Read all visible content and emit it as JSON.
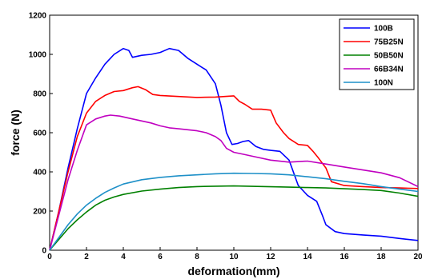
{
  "chart_data": {
    "type": "line",
    "title": "",
    "xlabel": "deformation(mm)",
    "ylabel": "force (N)",
    "xlim": [
      0,
      20
    ],
    "ylim": [
      0,
      1200
    ],
    "x_ticks": [
      0,
      2,
      4,
      6,
      8,
      10,
      12,
      14,
      16,
      18,
      20
    ],
    "y_ticks": [
      0,
      200,
      400,
      600,
      800,
      1000,
      1200
    ],
    "grid": false,
    "legend_position": "top-right",
    "series": [
      {
        "name": "100B",
        "color": "#0000ff",
        "points": [
          [
            0,
            0
          ],
          [
            0.5,
            200
          ],
          [
            1,
            420
          ],
          [
            1.5,
            620
          ],
          [
            2,
            800
          ],
          [
            2.5,
            880
          ],
          [
            3,
            950
          ],
          [
            3.5,
            1000
          ],
          [
            4,
            1030
          ],
          [
            4.3,
            1020
          ],
          [
            4.5,
            985
          ],
          [
            5,
            995
          ],
          [
            5.5,
            1000
          ],
          [
            6,
            1010
          ],
          [
            6.5,
            1030
          ],
          [
            7,
            1020
          ],
          [
            7.5,
            980
          ],
          [
            8,
            950
          ],
          [
            8.5,
            920
          ],
          [
            9,
            850
          ],
          [
            9.3,
            740
          ],
          [
            9.6,
            600
          ],
          [
            9.9,
            540
          ],
          [
            10.2,
            545
          ],
          [
            10.5,
            555
          ],
          [
            10.8,
            560
          ],
          [
            11.2,
            530
          ],
          [
            11.6,
            515
          ],
          [
            12,
            510
          ],
          [
            12.5,
            505
          ],
          [
            13,
            460
          ],
          [
            13.5,
            330
          ],
          [
            14,
            280
          ],
          [
            14.5,
            250
          ],
          [
            14.8,
            180
          ],
          [
            15,
            130
          ],
          [
            15.5,
            95
          ],
          [
            16,
            85
          ],
          [
            17,
            78
          ],
          [
            18,
            72
          ],
          [
            19,
            60
          ],
          [
            20,
            50
          ]
        ]
      },
      {
        "name": "75B25N",
        "color": "#ff0000",
        "points": [
          [
            0,
            0
          ],
          [
            0.5,
            200
          ],
          [
            1,
            400
          ],
          [
            1.5,
            580
          ],
          [
            2,
            700
          ],
          [
            2.5,
            760
          ],
          [
            3,
            790
          ],
          [
            3.5,
            810
          ],
          [
            4,
            815
          ],
          [
            4.5,
            830
          ],
          [
            4.8,
            835
          ],
          [
            5.2,
            820
          ],
          [
            5.6,
            795
          ],
          [
            6,
            790
          ],
          [
            7,
            785
          ],
          [
            8,
            780
          ],
          [
            9,
            782
          ],
          [
            9.5,
            785
          ],
          [
            10,
            788
          ],
          [
            10.3,
            760
          ],
          [
            10.6,
            745
          ],
          [
            11,
            720
          ],
          [
            11.5,
            720
          ],
          [
            12,
            715
          ],
          [
            12.3,
            650
          ],
          [
            12.7,
            600
          ],
          [
            13,
            570
          ],
          [
            13.5,
            540
          ],
          [
            14,
            535
          ],
          [
            14.3,
            505
          ],
          [
            14.6,
            470
          ],
          [
            15,
            420
          ],
          [
            15.3,
            350
          ],
          [
            16,
            330
          ],
          [
            17,
            325
          ],
          [
            18,
            320
          ],
          [
            19,
            318
          ],
          [
            20,
            315
          ]
        ]
      },
      {
        "name": "50B50N",
        "color": "#008000",
        "points": [
          [
            0,
            0
          ],
          [
            0.5,
            55
          ],
          [
            1,
            110
          ],
          [
            1.5,
            155
          ],
          [
            2,
            195
          ],
          [
            2.5,
            230
          ],
          [
            3,
            255
          ],
          [
            3.5,
            272
          ],
          [
            4,
            285
          ],
          [
            5,
            302
          ],
          [
            6,
            312
          ],
          [
            7,
            320
          ],
          [
            8,
            325
          ],
          [
            9,
            327
          ],
          [
            10,
            328
          ],
          [
            11,
            326
          ],
          [
            12,
            324
          ],
          [
            13,
            322
          ],
          [
            14,
            320
          ],
          [
            15,
            318
          ],
          [
            16,
            314
          ],
          [
            17,
            310
          ],
          [
            18,
            305
          ],
          [
            19,
            292
          ],
          [
            20,
            275
          ]
        ]
      },
      {
        "name": "66B34N",
        "color": "#c000c0",
        "points": [
          [
            0,
            0
          ],
          [
            0.5,
            180
          ],
          [
            1,
            360
          ],
          [
            1.5,
            510
          ],
          [
            2,
            640
          ],
          [
            2.5,
            670
          ],
          [
            3,
            685
          ],
          [
            3.3,
            690
          ],
          [
            3.8,
            685
          ],
          [
            4.5,
            670
          ],
          [
            5,
            660
          ],
          [
            5.5,
            650
          ],
          [
            6,
            635
          ],
          [
            6.5,
            625
          ],
          [
            7,
            620
          ],
          [
            8,
            610
          ],
          [
            8.5,
            600
          ],
          [
            9,
            580
          ],
          [
            9.3,
            560
          ],
          [
            9.6,
            520
          ],
          [
            10,
            500
          ],
          [
            10.5,
            490
          ],
          [
            11,
            480
          ],
          [
            12,
            460
          ],
          [
            13,
            450
          ],
          [
            14,
            455
          ],
          [
            15,
            440
          ],
          [
            16,
            425
          ],
          [
            17,
            410
          ],
          [
            18,
            395
          ],
          [
            19,
            370
          ],
          [
            20,
            325
          ]
        ]
      },
      {
        "name": "100N",
        "color": "#1e90c8",
        "points": [
          [
            0,
            0
          ],
          [
            0.5,
            65
          ],
          [
            1,
            130
          ],
          [
            1.5,
            185
          ],
          [
            2,
            230
          ],
          [
            2.5,
            265
          ],
          [
            3,
            295
          ],
          [
            3.5,
            318
          ],
          [
            4,
            338
          ],
          [
            5,
            360
          ],
          [
            6,
            372
          ],
          [
            7,
            380
          ],
          [
            8,
            385
          ],
          [
            9,
            390
          ],
          [
            10,
            393
          ],
          [
            11,
            392
          ],
          [
            12,
            390
          ],
          [
            13,
            385
          ],
          [
            14,
            375
          ],
          [
            15,
            365
          ],
          [
            16,
            352
          ],
          [
            17,
            340
          ],
          [
            18,
            325
          ],
          [
            19,
            312
          ],
          [
            20,
            300
          ]
        ]
      }
    ]
  }
}
